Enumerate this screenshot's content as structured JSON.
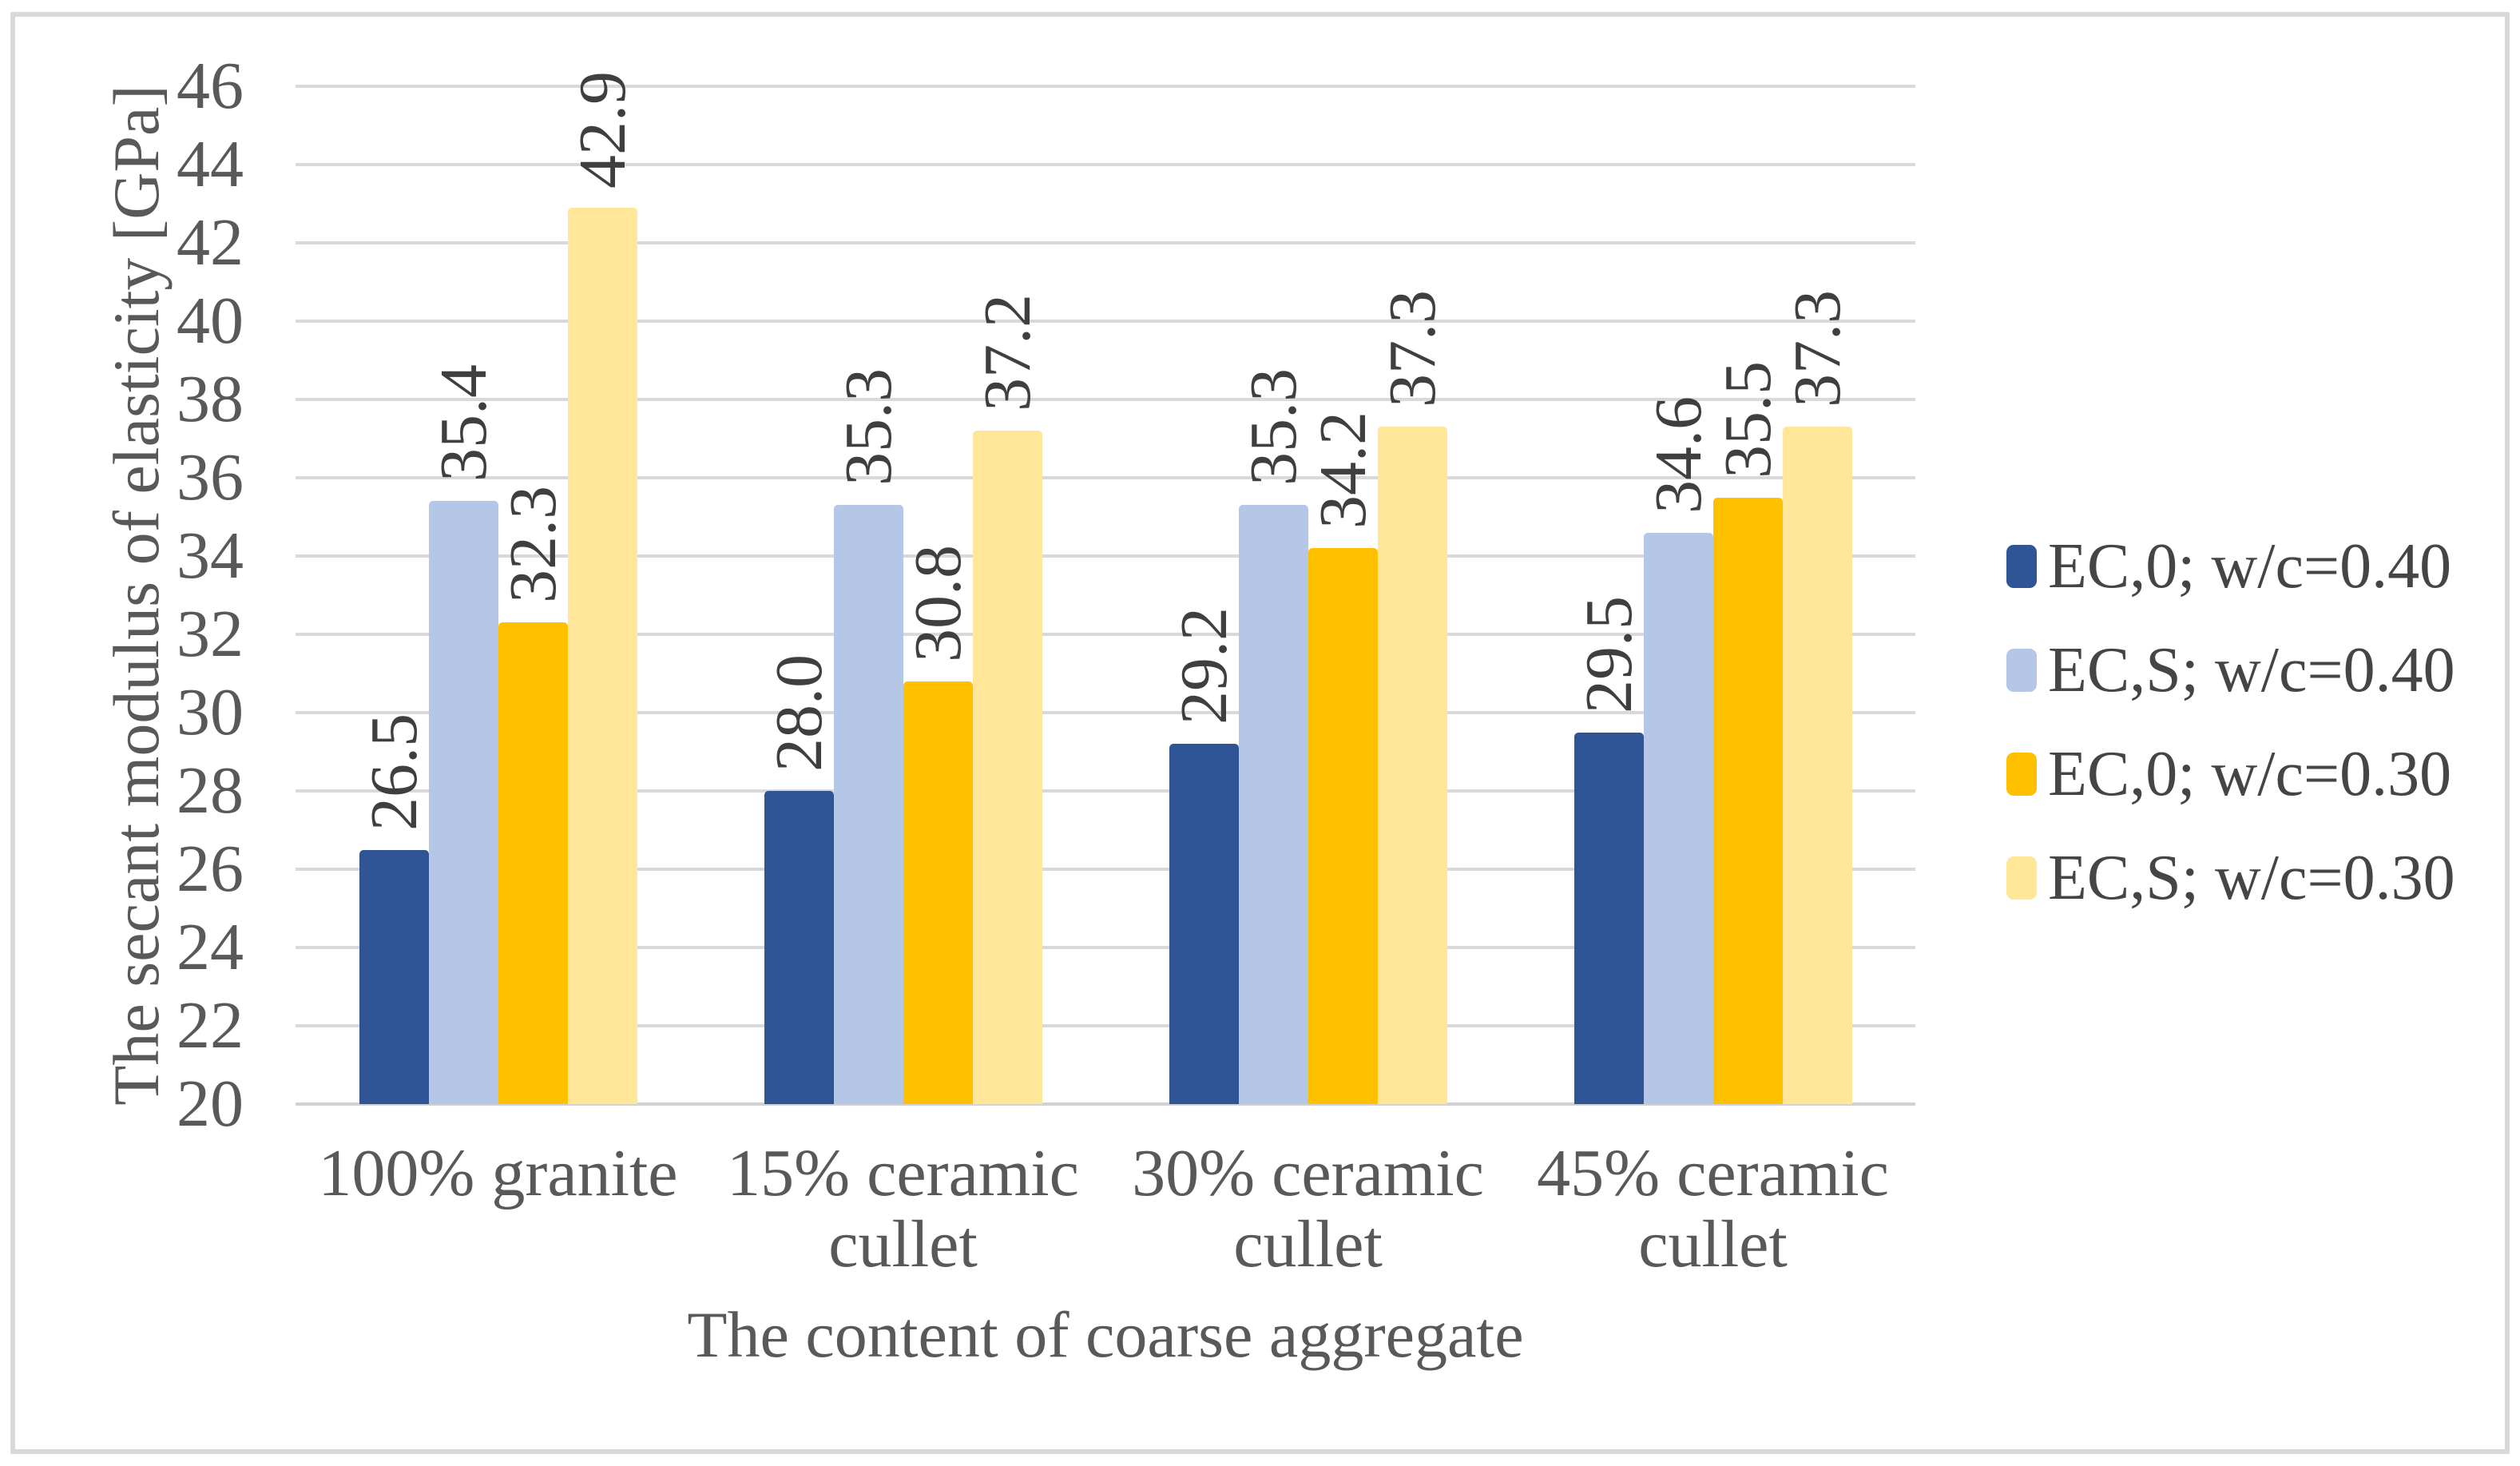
{
  "chart_data": {
    "type": "bar",
    "title": "",
    "categories": [
      "100% granite",
      "15% ceramic cullet",
      "30% ceramic cullet",
      "45% ceramic cullet"
    ],
    "series": [
      {
        "name": "EC,0; w/c=0.40",
        "color": "#2F5597",
        "values": [
          26.5,
          28.0,
          29.2,
          29.5
        ]
      },
      {
        "name": "EC,S; w/c=0.40",
        "color": "#B4C7E7",
        "values": [
          35.4,
          35.3,
          35.3,
          34.6
        ]
      },
      {
        "name": "EC,0; w/c=0.30",
        "color": "#FFC000",
        "values": [
          32.3,
          30.8,
          34.2,
          35.5
        ]
      },
      {
        "name": "EC,S; w/c=0.30",
        "color": "#FFE699",
        "values": [
          42.9,
          37.2,
          37.3,
          37.3
        ]
      }
    ],
    "xlabel": "The content of coarse aggregate",
    "ylabel": "The secant modulus of elasticity [GPa]",
    "ylim": [
      20,
      46
    ],
    "ytick_step": 2,
    "yticks": [
      20,
      22,
      24,
      26,
      28,
      30,
      32,
      34,
      36,
      38,
      40,
      42,
      44,
      46
    ],
    "grid": true,
    "legend_position": "right",
    "value_label_rotation": -90,
    "value_label_format": "one-decimal",
    "colors": {
      "gridline": "#D9D9D9",
      "frame_border": "#D9D9D9",
      "axis_text": "#595959",
      "value_label_text": "#3F3F3F",
      "legend_text": "#454545",
      "background": "#FFFFFF"
    }
  }
}
